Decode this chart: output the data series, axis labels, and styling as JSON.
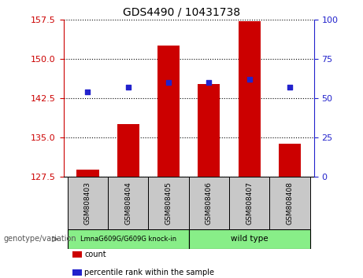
{
  "title": "GDS4490 / 10431738",
  "samples": [
    "GSM808403",
    "GSM808404",
    "GSM808405",
    "GSM808406",
    "GSM808407",
    "GSM808408"
  ],
  "counts": [
    128.8,
    137.5,
    152.5,
    145.2,
    157.2,
    133.8
  ],
  "percentile_ranks": [
    54,
    57,
    60,
    60,
    62,
    57
  ],
  "ylim_left": [
    127.5,
    157.5
  ],
  "yticks_left": [
    127.5,
    135.0,
    142.5,
    150.0,
    157.5
  ],
  "ylim_right": [
    0,
    100
  ],
  "yticks_right": [
    0,
    25,
    50,
    75,
    100
  ],
  "bar_color": "#cc0000",
  "dot_color": "#2222cc",
  "bar_width": 0.55,
  "left_tick_color": "#cc0000",
  "right_tick_color": "#2222cc",
  "grid_style": "dotted",
  "grid_color": "#000000",
  "background_label": "#c8c8c8",
  "group1_label": "LmnaG609G/G609G knock-in",
  "group2_label": "wild type",
  "group_color": "#88ee88",
  "genotype_label": "genotype/variation",
  "legend_count_label": "count",
  "legend_percentile_label": "percentile rank within the sample"
}
